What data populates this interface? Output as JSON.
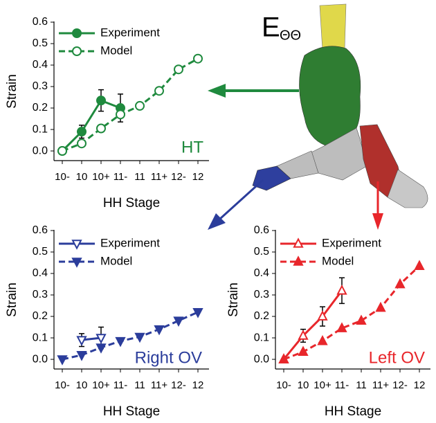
{
  "figure_label": {
    "base": "E",
    "subscript": "ΘΘ"
  },
  "chart_data": [
    {
      "type": "line",
      "annotation": "HT",
      "x_label": "HH Stage",
      "y_label": "Strain",
      "categories": [
        "10-",
        "10",
        "10+",
        "11-",
        "11",
        "11+",
        "12-",
        "12"
      ],
      "ylim": [
        -0.045,
        0.6
      ],
      "yticks": [
        {
          "value": 0,
          "label": "0.0"
        },
        {
          "value": 0.1,
          "label": "0.1"
        },
        {
          "value": 0.2,
          "label": "0.2"
        },
        {
          "value": 0.3,
          "label": "0.3"
        },
        {
          "value": 0.4,
          "label": "0.4"
        },
        {
          "value": 0.5,
          "label": "0.5"
        },
        {
          "value": 0.6,
          "label": "0.6"
        }
      ],
      "series": [
        {
          "name": "Experiment",
          "color": "#1f8a3e",
          "marker": "circle",
          "filled": true,
          "dashed": false,
          "values": [
            0,
            0.09,
            0.235,
            0.2,
            null,
            null,
            null,
            null
          ],
          "errors": [
            null,
            0.03,
            0.05,
            0.065,
            null,
            null,
            null,
            null
          ]
        },
        {
          "name": "Model",
          "color": "#1f8a3e",
          "marker": "circle",
          "filled": false,
          "dashed": true,
          "values": [
            0,
            0.035,
            0.105,
            0.17,
            0.21,
            0.28,
            0.38,
            0.43
          ]
        }
      ]
    },
    {
      "type": "line",
      "annotation": "Right OV",
      "x_label": "HH Stage",
      "y_label": "Strain",
      "categories": [
        "10-",
        "10",
        "10+",
        "11-",
        "11",
        "11+",
        "12-",
        "12"
      ],
      "ylim": [
        -0.045,
        0.6
      ],
      "yticks": [
        {
          "value": 0,
          "label": "0.0"
        },
        {
          "value": 0.1,
          "label": "0.1"
        },
        {
          "value": 0.2,
          "label": "0.2"
        },
        {
          "value": 0.3,
          "label": "0.3"
        },
        {
          "value": 0.4,
          "label": "0.4"
        },
        {
          "value": 0.5,
          "label": "0.5"
        },
        {
          "value": 0.6,
          "label": "0.6"
        }
      ],
      "series": [
        {
          "name": "Experiment",
          "color": "#2b3d9b",
          "marker": "triangle_down",
          "filled": false,
          "dashed": false,
          "values": [
            null,
            0.09,
            0.1,
            null,
            null,
            null,
            null,
            null
          ],
          "errors": [
            null,
            0.03,
            0.05,
            null,
            null,
            null,
            null,
            null
          ]
        },
        {
          "name": "Model",
          "color": "#2b3d9b",
          "marker": "triangle_down",
          "filled": true,
          "dashed": true,
          "values": [
            0,
            0.02,
            0.055,
            0.085,
            0.105,
            0.14,
            0.18,
            0.22
          ]
        }
      ]
    },
    {
      "type": "line",
      "annotation": "Left OV",
      "x_label": "HH Stage",
      "y_label": "Strain",
      "categories": [
        "10-",
        "10",
        "10+",
        "11-",
        "11",
        "11+",
        "12-",
        "12"
      ],
      "ylim": [
        -0.045,
        0.6
      ],
      "yticks": [
        {
          "value": 0,
          "label": "0.0"
        },
        {
          "value": 0.1,
          "label": "0.1"
        },
        {
          "value": 0.2,
          "label": "0.2"
        },
        {
          "value": 0.3,
          "label": "0.3"
        },
        {
          "value": 0.4,
          "label": "0.4"
        },
        {
          "value": 0.5,
          "label": "0.5"
        },
        {
          "value": 0.6,
          "label": "0.6"
        }
      ],
      "series": [
        {
          "name": "Experiment",
          "color": "#e8262b",
          "marker": "triangle_up",
          "filled": false,
          "dashed": false,
          "values": [
            0,
            0.11,
            0.2,
            0.32,
            null,
            null,
            null,
            null
          ],
          "errors": [
            null,
            0.03,
            0.045,
            0.06,
            null,
            null,
            null,
            null
          ]
        },
        {
          "name": "Model",
          "color": "#e8262b",
          "marker": "triangle_up",
          "filled": true,
          "dashed": true,
          "values": [
            0,
            0.035,
            0.085,
            0.145,
            0.18,
            0.24,
            0.35,
            0.435
          ]
        }
      ]
    }
  ]
}
